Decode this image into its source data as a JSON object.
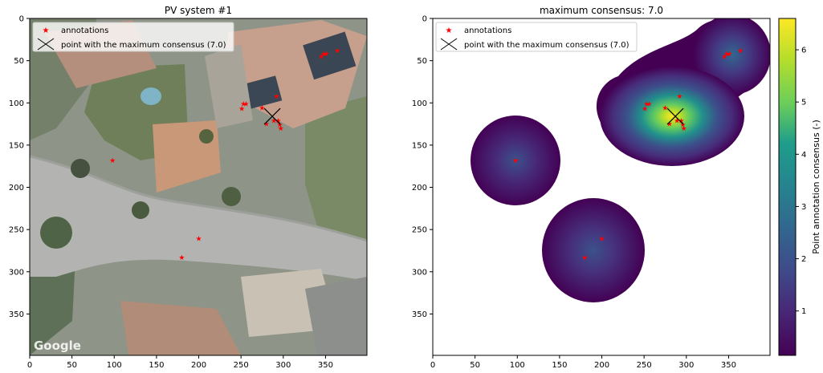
{
  "chart_data": [
    {
      "type": "scatter",
      "title": "PV system #1",
      "background": "aerial-image",
      "xlim": [
        0,
        399
      ],
      "ylim": [
        399,
        0
      ],
      "xticks": [
        "0",
        "50",
        "100",
        "150",
        "200",
        "250",
        "300",
        "350"
      ],
      "yticks": [
        "0",
        "50",
        "100",
        "150",
        "200",
        "250",
        "300",
        "350"
      ],
      "image_watermark": "Google",
      "legend": {
        "position": "top-left",
        "entries": [
          "annotations",
          "point with the maximum consensus (7.0)"
        ]
      },
      "series": [
        {
          "name": "annotations",
          "marker": "star",
          "color": "#ff0000",
          "points": [
            [
              98,
              168
            ],
            [
              180,
              283
            ],
            [
              200,
              261
            ],
            [
              251,
              107
            ],
            [
              253,
              101
            ],
            [
              256,
              101
            ],
            [
              275,
              106
            ],
            [
              280,
              125
            ],
            [
              289,
              121
            ],
            [
              292,
              92
            ],
            [
              294,
              121
            ],
            [
              296,
              126
            ],
            [
              297,
              130
            ],
            [
              345,
              45
            ],
            [
              348,
              42
            ],
            [
              351,
              42
            ],
            [
              364,
              38
            ]
          ]
        },
        {
          "name": "point with the maximum consensus (7.0)",
          "marker": "x",
          "color": "#000000",
          "points": [
            [
              287,
              116
            ]
          ]
        }
      ]
    },
    {
      "type": "heatmap",
      "title": "maximum consensus: 7.0",
      "xlim": [
        0,
        399
      ],
      "ylim": [
        399,
        0
      ],
      "xticks": [
        "0",
        "50",
        "100",
        "150",
        "200",
        "250",
        "300",
        "350"
      ],
      "yticks": [
        "0",
        "50",
        "100",
        "150",
        "200",
        "250",
        "300",
        "350"
      ],
      "colormap": "viridis",
      "colorbar": {
        "label": "Point annotation consensus (-)",
        "ticks": [
          "1",
          "2",
          "3",
          "4",
          "5",
          "6"
        ],
        "range": [
          0.15,
          6.6
        ]
      },
      "legend": {
        "position": "top-left",
        "entries": [
          "annotations",
          "point with the maximum consensus (7.0)"
        ]
      },
      "series": [
        {
          "name": "annotations",
          "marker": "star",
          "color": "#ff0000",
          "points": [
            [
              98,
              168
            ],
            [
              180,
              283
            ],
            [
              200,
              261
            ],
            [
              251,
              107
            ],
            [
              253,
              101
            ],
            [
              256,
              101
            ],
            [
              275,
              106
            ],
            [
              280,
              125
            ],
            [
              289,
              121
            ],
            [
              292,
              92
            ],
            [
              294,
              121
            ],
            [
              296,
              126
            ],
            [
              297,
              130
            ],
            [
              345,
              45
            ],
            [
              348,
              42
            ],
            [
              351,
              42
            ],
            [
              364,
              38
            ]
          ]
        },
        {
          "name": "point with the maximum consensus (7.0)",
          "marker": "x",
          "color": "#000000",
          "points": [
            [
              287,
              116
            ]
          ]
        }
      ]
    }
  ]
}
